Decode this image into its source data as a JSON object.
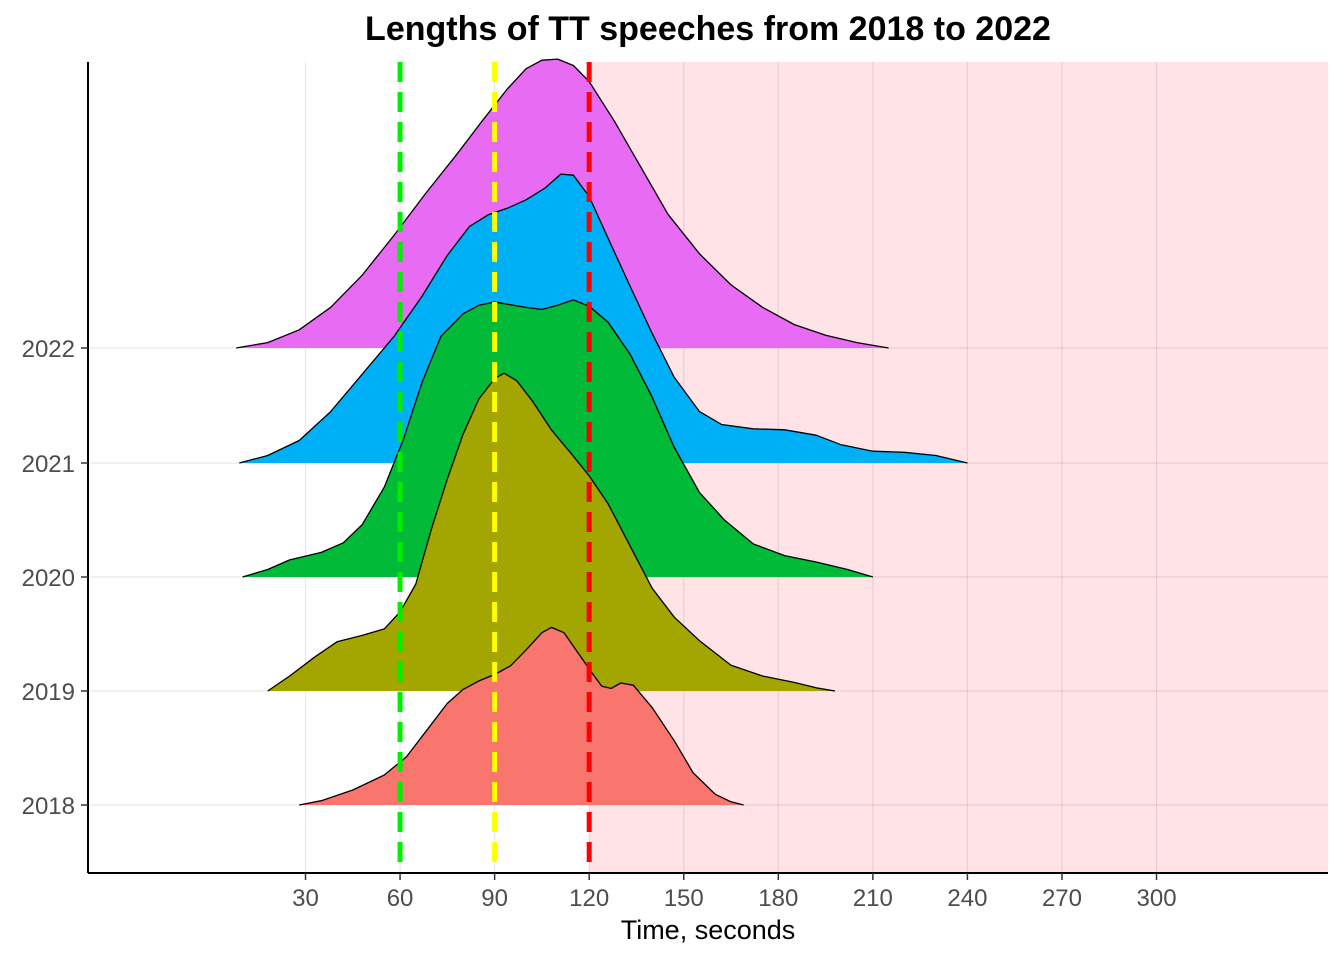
{
  "chart_data": {
    "type": "ridgeline",
    "title": "Lengths of TT speeches from 2018 to 2022",
    "xlabel": "Time, seconds",
    "ylabel": "",
    "xlim": [
      -15,
      350
    ],
    "x_ticks": [
      30,
      60,
      90,
      120,
      150,
      180,
      210,
      240,
      270,
      300
    ],
    "x_tick_labels": [
      "30",
      "60",
      "90",
      "120",
      "150",
      "180",
      "210",
      "240",
      "270",
      "300"
    ],
    "grid": true,
    "legend": "none",
    "shaded_region": {
      "from": 120,
      "to": 350,
      "color": "#ffe3e6"
    },
    "reference_lines": [
      {
        "x": 60,
        "color": "#00ee00",
        "style": "dashed"
      },
      {
        "x": 90,
        "color": "#ffff00",
        "style": "dashed"
      },
      {
        "x": 120,
        "color": "#ff0000",
        "style": "dashed"
      }
    ],
    "series": [
      {
        "name": "2018",
        "color": "#f8766d",
        "points": [
          [
            28,
            0.0
          ],
          [
            35,
            0.04
          ],
          [
            45,
            0.14
          ],
          [
            55,
            0.28
          ],
          [
            62,
            0.45
          ],
          [
            68,
            0.68
          ],
          [
            75,
            0.95
          ],
          [
            80,
            1.08
          ],
          [
            85,
            1.16
          ],
          [
            90,
            1.22
          ],
          [
            95,
            1.3
          ],
          [
            100,
            1.45
          ],
          [
            105,
            1.61
          ],
          [
            108,
            1.66
          ],
          [
            112,
            1.61
          ],
          [
            117,
            1.4
          ],
          [
            121,
            1.23
          ],
          [
            124,
            1.11
          ],
          [
            127,
            1.09
          ],
          [
            130,
            1.14
          ],
          [
            134,
            1.12
          ],
          [
            140,
            0.91
          ],
          [
            147,
            0.6
          ],
          [
            153,
            0.3
          ],
          [
            160,
            0.1
          ],
          [
            165,
            0.03
          ],
          [
            169,
            0.0
          ]
        ]
      },
      {
        "name": "2019",
        "color": "#a3a500",
        "points": [
          [
            18,
            0.0
          ],
          [
            25,
            0.14
          ],
          [
            33,
            0.32
          ],
          [
            40,
            0.46
          ],
          [
            48,
            0.52
          ],
          [
            55,
            0.58
          ],
          [
            60,
            0.74
          ],
          [
            65,
            1.0
          ],
          [
            70,
            1.52
          ],
          [
            75,
            1.98
          ],
          [
            80,
            2.4
          ],
          [
            85,
            2.73
          ],
          [
            90,
            2.92
          ],
          [
            93,
            2.97
          ],
          [
            97,
            2.9
          ],
          [
            102,
            2.71
          ],
          [
            108,
            2.44
          ],
          [
            114,
            2.23
          ],
          [
            120,
            2.01
          ],
          [
            126,
            1.75
          ],
          [
            132,
            1.41
          ],
          [
            140,
            0.96
          ],
          [
            147,
            0.69
          ],
          [
            155,
            0.47
          ],
          [
            165,
            0.24
          ],
          [
            175,
            0.14
          ],
          [
            185,
            0.08
          ],
          [
            192,
            0.03
          ],
          [
            198,
            0.0
          ]
        ]
      },
      {
        "name": "2020",
        "color": "#00ba38",
        "points": [
          [
            10,
            0.0
          ],
          [
            18,
            0.07
          ],
          [
            25,
            0.16
          ],
          [
            35,
            0.23
          ],
          [
            42,
            0.32
          ],
          [
            48,
            0.49
          ],
          [
            55,
            0.84
          ],
          [
            61,
            1.28
          ],
          [
            67,
            1.82
          ],
          [
            73,
            2.25
          ],
          [
            80,
            2.46
          ],
          [
            85,
            2.54
          ],
          [
            90,
            2.57
          ],
          [
            94,
            2.55
          ],
          [
            100,
            2.52
          ],
          [
            105,
            2.5
          ],
          [
            110,
            2.54
          ],
          [
            115,
            2.59
          ],
          [
            120,
            2.53
          ],
          [
            126,
            2.38
          ],
          [
            133,
            2.08
          ],
          [
            140,
            1.68
          ],
          [
            147,
            1.21
          ],
          [
            155,
            0.79
          ],
          [
            163,
            0.53
          ],
          [
            172,
            0.31
          ],
          [
            182,
            0.2
          ],
          [
            192,
            0.14
          ],
          [
            202,
            0.07
          ],
          [
            210,
            0.0
          ]
        ]
      },
      {
        "name": "2021",
        "color": "#00b0f6",
        "points": [
          [
            9,
            0.0
          ],
          [
            18,
            0.07
          ],
          [
            28,
            0.21
          ],
          [
            38,
            0.48
          ],
          [
            48,
            0.83
          ],
          [
            58,
            1.18
          ],
          [
            67,
            1.56
          ],
          [
            75,
            1.94
          ],
          [
            82,
            2.21
          ],
          [
            88,
            2.32
          ],
          [
            94,
            2.38
          ],
          [
            100,
            2.46
          ],
          [
            106,
            2.57
          ],
          [
            111,
            2.7
          ],
          [
            115,
            2.69
          ],
          [
            120,
            2.49
          ],
          [
            126,
            2.1
          ],
          [
            133,
            1.65
          ],
          [
            140,
            1.21
          ],
          [
            147,
            0.8
          ],
          [
            155,
            0.48
          ],
          [
            162,
            0.36
          ],
          [
            172,
            0.32
          ],
          [
            182,
            0.31
          ],
          [
            192,
            0.26
          ],
          [
            200,
            0.17
          ],
          [
            210,
            0.11
          ],
          [
            220,
            0.1
          ],
          [
            230,
            0.07
          ],
          [
            240,
            0.0
          ]
        ]
      },
      {
        "name": "2022",
        "color": "#e76bf3",
        "points": [
          [
            8,
            0.0
          ],
          [
            18,
            0.05
          ],
          [
            28,
            0.17
          ],
          [
            38,
            0.38
          ],
          [
            48,
            0.68
          ],
          [
            58,
            1.05
          ],
          [
            68,
            1.44
          ],
          [
            78,
            1.81
          ],
          [
            86,
            2.12
          ],
          [
            94,
            2.42
          ],
          [
            100,
            2.61
          ],
          [
            105,
            2.69
          ],
          [
            110,
            2.7
          ],
          [
            115,
            2.64
          ],
          [
            120,
            2.49
          ],
          [
            128,
            2.12
          ],
          [
            136,
            1.71
          ],
          [
            145,
            1.25
          ],
          [
            155,
            0.88
          ],
          [
            165,
            0.59
          ],
          [
            175,
            0.38
          ],
          [
            185,
            0.22
          ],
          [
            195,
            0.12
          ],
          [
            205,
            0.05
          ],
          [
            215,
            0.0
          ]
        ]
      }
    ]
  }
}
